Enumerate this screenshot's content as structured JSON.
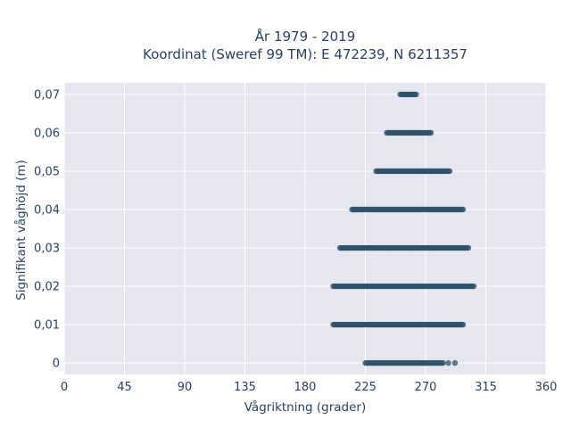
{
  "chart_data": {
    "type": "scatter",
    "title_line1": "År 1979 - 2019",
    "title_line2": "Koordinat (Sweref 99 TM): E 472239, N 6211357",
    "xlabel": "Vågriktning (grader)",
    "ylabel": "Signifikant våghöjd (m)",
    "xlim": [
      0,
      360
    ],
    "ylim": [
      -0.003,
      0.073
    ],
    "xticks": [
      0,
      45,
      90,
      135,
      180,
      225,
      270,
      315,
      360
    ],
    "xtick_labels": [
      "0",
      "45",
      "90",
      "135",
      "180",
      "225",
      "270",
      "315",
      "360"
    ],
    "yticks": [
      0,
      0.01,
      0.02,
      0.03,
      0.04,
      0.05,
      0.06,
      0.07
    ],
    "ytick_labels": [
      "0",
      "0,01",
      "0,02",
      "0,03",
      "0,04",
      "0,05",
      "0,06",
      "0,07"
    ],
    "grid": true,
    "marker_color": "#2e5068",
    "plot_bg": "#e5e6f0",
    "bands": [
      {
        "y": 0.0,
        "x_min": 225,
        "x_max": 283
      },
      {
        "y": 0.01,
        "x_min": 201,
        "x_max": 298
      },
      {
        "y": 0.02,
        "x_min": 201,
        "x_max": 306
      },
      {
        "y": 0.03,
        "x_min": 206,
        "x_max": 302
      },
      {
        "y": 0.04,
        "x_min": 215,
        "x_max": 298
      },
      {
        "y": 0.05,
        "x_min": 233,
        "x_max": 288
      },
      {
        "y": 0.06,
        "x_min": 241,
        "x_max": 274
      },
      {
        "y": 0.07,
        "x_min": 252,
        "x_max": 263
      }
    ],
    "outliers": [
      {
        "x": 287,
        "y": 0.0
      },
      {
        "x": 292,
        "y": 0.0
      },
      {
        "x": 251,
        "y": 0.07
      }
    ]
  }
}
